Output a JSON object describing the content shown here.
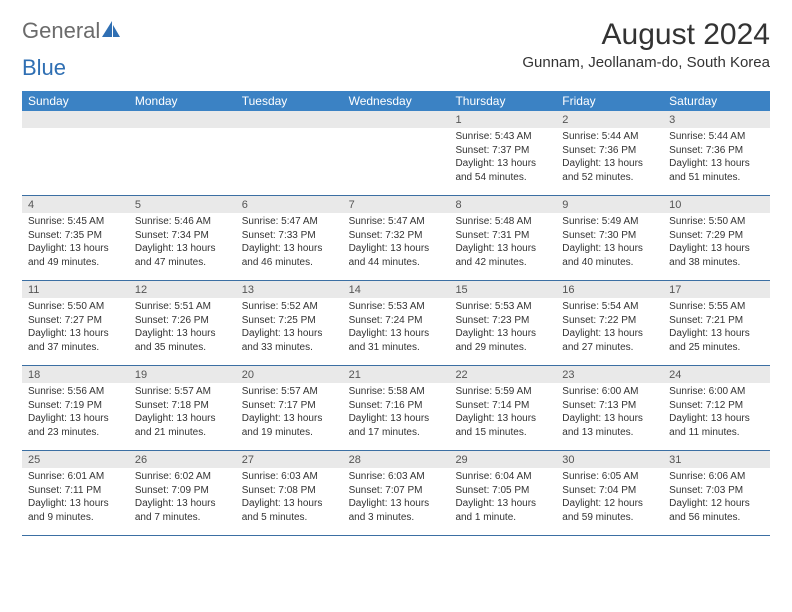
{
  "logo": {
    "textGeneral": "General",
    "textBlue": "Blue"
  },
  "title": "August 2024",
  "location": "Gunnam, Jeollanam-do, South Korea",
  "colors": {
    "headerBg": "#3b82c4",
    "headerText": "#ffffff",
    "dayNumBg": "#e9e9e9",
    "weekBorder": "#3b6fa3",
    "bodyText": "#333333",
    "logoGray": "#6b6b6b",
    "logoBlue": "#2f6fb3"
  },
  "weekdays": [
    "Sunday",
    "Monday",
    "Tuesday",
    "Wednesday",
    "Thursday",
    "Friday",
    "Saturday"
  ],
  "weeks": [
    [
      {
        "empty": true
      },
      {
        "empty": true
      },
      {
        "empty": true
      },
      {
        "empty": true
      },
      {
        "num": "1",
        "sunrise": "Sunrise: 5:43 AM",
        "sunset": "Sunset: 7:37 PM",
        "daylight": "Daylight: 13 hours and 54 minutes."
      },
      {
        "num": "2",
        "sunrise": "Sunrise: 5:44 AM",
        "sunset": "Sunset: 7:36 PM",
        "daylight": "Daylight: 13 hours and 52 minutes."
      },
      {
        "num": "3",
        "sunrise": "Sunrise: 5:44 AM",
        "sunset": "Sunset: 7:36 PM",
        "daylight": "Daylight: 13 hours and 51 minutes."
      }
    ],
    [
      {
        "num": "4",
        "sunrise": "Sunrise: 5:45 AM",
        "sunset": "Sunset: 7:35 PM",
        "daylight": "Daylight: 13 hours and 49 minutes."
      },
      {
        "num": "5",
        "sunrise": "Sunrise: 5:46 AM",
        "sunset": "Sunset: 7:34 PM",
        "daylight": "Daylight: 13 hours and 47 minutes."
      },
      {
        "num": "6",
        "sunrise": "Sunrise: 5:47 AM",
        "sunset": "Sunset: 7:33 PM",
        "daylight": "Daylight: 13 hours and 46 minutes."
      },
      {
        "num": "7",
        "sunrise": "Sunrise: 5:47 AM",
        "sunset": "Sunset: 7:32 PM",
        "daylight": "Daylight: 13 hours and 44 minutes."
      },
      {
        "num": "8",
        "sunrise": "Sunrise: 5:48 AM",
        "sunset": "Sunset: 7:31 PM",
        "daylight": "Daylight: 13 hours and 42 minutes."
      },
      {
        "num": "9",
        "sunrise": "Sunrise: 5:49 AM",
        "sunset": "Sunset: 7:30 PM",
        "daylight": "Daylight: 13 hours and 40 minutes."
      },
      {
        "num": "10",
        "sunrise": "Sunrise: 5:50 AM",
        "sunset": "Sunset: 7:29 PM",
        "daylight": "Daylight: 13 hours and 38 minutes."
      }
    ],
    [
      {
        "num": "11",
        "sunrise": "Sunrise: 5:50 AM",
        "sunset": "Sunset: 7:27 PM",
        "daylight": "Daylight: 13 hours and 37 minutes."
      },
      {
        "num": "12",
        "sunrise": "Sunrise: 5:51 AM",
        "sunset": "Sunset: 7:26 PM",
        "daylight": "Daylight: 13 hours and 35 minutes."
      },
      {
        "num": "13",
        "sunrise": "Sunrise: 5:52 AM",
        "sunset": "Sunset: 7:25 PM",
        "daylight": "Daylight: 13 hours and 33 minutes."
      },
      {
        "num": "14",
        "sunrise": "Sunrise: 5:53 AM",
        "sunset": "Sunset: 7:24 PM",
        "daylight": "Daylight: 13 hours and 31 minutes."
      },
      {
        "num": "15",
        "sunrise": "Sunrise: 5:53 AM",
        "sunset": "Sunset: 7:23 PM",
        "daylight": "Daylight: 13 hours and 29 minutes."
      },
      {
        "num": "16",
        "sunrise": "Sunrise: 5:54 AM",
        "sunset": "Sunset: 7:22 PM",
        "daylight": "Daylight: 13 hours and 27 minutes."
      },
      {
        "num": "17",
        "sunrise": "Sunrise: 5:55 AM",
        "sunset": "Sunset: 7:21 PM",
        "daylight": "Daylight: 13 hours and 25 minutes."
      }
    ],
    [
      {
        "num": "18",
        "sunrise": "Sunrise: 5:56 AM",
        "sunset": "Sunset: 7:19 PM",
        "daylight": "Daylight: 13 hours and 23 minutes."
      },
      {
        "num": "19",
        "sunrise": "Sunrise: 5:57 AM",
        "sunset": "Sunset: 7:18 PM",
        "daylight": "Daylight: 13 hours and 21 minutes."
      },
      {
        "num": "20",
        "sunrise": "Sunrise: 5:57 AM",
        "sunset": "Sunset: 7:17 PM",
        "daylight": "Daylight: 13 hours and 19 minutes."
      },
      {
        "num": "21",
        "sunrise": "Sunrise: 5:58 AM",
        "sunset": "Sunset: 7:16 PM",
        "daylight": "Daylight: 13 hours and 17 minutes."
      },
      {
        "num": "22",
        "sunrise": "Sunrise: 5:59 AM",
        "sunset": "Sunset: 7:14 PM",
        "daylight": "Daylight: 13 hours and 15 minutes."
      },
      {
        "num": "23",
        "sunrise": "Sunrise: 6:00 AM",
        "sunset": "Sunset: 7:13 PM",
        "daylight": "Daylight: 13 hours and 13 minutes."
      },
      {
        "num": "24",
        "sunrise": "Sunrise: 6:00 AM",
        "sunset": "Sunset: 7:12 PM",
        "daylight": "Daylight: 13 hours and 11 minutes."
      }
    ],
    [
      {
        "num": "25",
        "sunrise": "Sunrise: 6:01 AM",
        "sunset": "Sunset: 7:11 PM",
        "daylight": "Daylight: 13 hours and 9 minutes."
      },
      {
        "num": "26",
        "sunrise": "Sunrise: 6:02 AM",
        "sunset": "Sunset: 7:09 PM",
        "daylight": "Daylight: 13 hours and 7 minutes."
      },
      {
        "num": "27",
        "sunrise": "Sunrise: 6:03 AM",
        "sunset": "Sunset: 7:08 PM",
        "daylight": "Daylight: 13 hours and 5 minutes."
      },
      {
        "num": "28",
        "sunrise": "Sunrise: 6:03 AM",
        "sunset": "Sunset: 7:07 PM",
        "daylight": "Daylight: 13 hours and 3 minutes."
      },
      {
        "num": "29",
        "sunrise": "Sunrise: 6:04 AM",
        "sunset": "Sunset: 7:05 PM",
        "daylight": "Daylight: 13 hours and 1 minute."
      },
      {
        "num": "30",
        "sunrise": "Sunrise: 6:05 AM",
        "sunset": "Sunset: 7:04 PM",
        "daylight": "Daylight: 12 hours and 59 minutes."
      },
      {
        "num": "31",
        "sunrise": "Sunrise: 6:06 AM",
        "sunset": "Sunset: 7:03 PM",
        "daylight": "Daylight: 12 hours and 56 minutes."
      }
    ]
  ]
}
